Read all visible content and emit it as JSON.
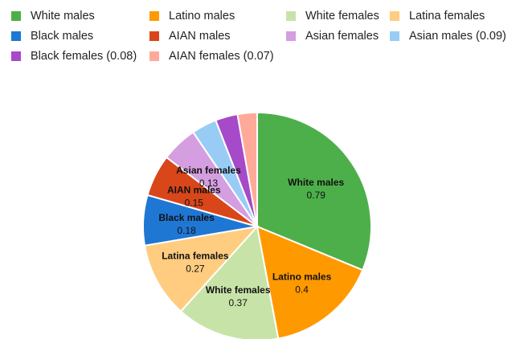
{
  "chart_data": {
    "type": "pie",
    "title": "",
    "legend_position": "top",
    "slices": [
      {
        "name": "White males",
        "value": 0.79,
        "color": "#4daf4a",
        "label_value": "0.79",
        "show_label": true
      },
      {
        "name": "Latino males",
        "value": 0.4,
        "color": "#ff9900",
        "label_value": "0.4",
        "show_label": true
      },
      {
        "name": "White females",
        "value": 0.37,
        "color": "#c8e3a8",
        "label_value": "0.37",
        "show_label": true
      },
      {
        "name": "Latina females",
        "value": 0.27,
        "color": "#ffcc80",
        "label_value": "0.27",
        "show_label": true
      },
      {
        "name": "Black males",
        "value": 0.18,
        "color": "#1f77d4",
        "label_value": "0.18",
        "show_label": true
      },
      {
        "name": "AIAN males",
        "value": 0.15,
        "color": "#d9461a",
        "label_value": "0.15",
        "show_label": true
      },
      {
        "name": "Asian females",
        "value": 0.13,
        "color": "#d49ee0",
        "label_value": "0.13",
        "show_label": true
      },
      {
        "name": "Asian males",
        "value": 0.09,
        "color": "#99ccf5",
        "label_value": "",
        "show_label": false
      },
      {
        "name": "Black females",
        "value": 0.08,
        "color": "#a64ac9",
        "label_value": "",
        "show_label": false
      },
      {
        "name": "AIAN females",
        "value": 0.07,
        "color": "#ffaa99",
        "label_value": "",
        "show_label": false
      }
    ]
  },
  "legend": [
    {
      "label": "White males",
      "color": "#4daf4a"
    },
    {
      "label": "Latino males",
      "color": "#ff9900"
    },
    {
      "label": "White females",
      "color": "#c8e3a8"
    },
    {
      "label": "Latina females",
      "color": "#ffcc80"
    },
    {
      "label": "Black males",
      "color": "#1f77d4"
    },
    {
      "label": "AIAN males",
      "color": "#d9461a"
    },
    {
      "label": "Asian females",
      "color": "#d49ee0"
    },
    {
      "label": "Asian males (0.09)",
      "color": "#99ccf5"
    },
    {
      "label": "Black females (0.08)",
      "color": "#a64ac9"
    },
    {
      "label": "AIAN females (0.07)",
      "color": "#ffaa99"
    }
  ]
}
